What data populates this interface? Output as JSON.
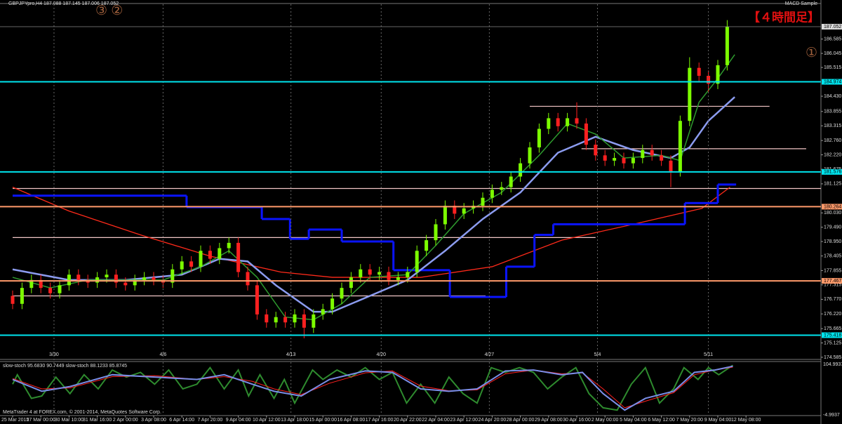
{
  "indicator": "MACD Sample",
  "footer": "MetaTrader 4 at FOREX.com, © 2001-2014, MetaQuotes Software Corp.",
  "chart_data": [
    {
      "type": "candlestick",
      "title": "GBPJPYpro,H4 187.088 187.145 187.006 187.052",
      "annotations": [
        "③ ②",
        "①",
        "【４時間足】"
      ],
      "categories": [
        "25 Mar 2015",
        null,
        null,
        "27 Mar 00:00",
        null,
        null,
        "30 Mar 10:00",
        null,
        null,
        "31 Mar 16:00",
        null,
        null,
        "2 Apr 00:00",
        null,
        null,
        "3 Apr 08:00",
        null,
        null,
        "6 Apr 14:00",
        null,
        null,
        "7 Apr 20:00",
        null,
        null,
        "9 Apr 04:00",
        null,
        null,
        "10 Apr 12:00",
        null,
        null,
        "13 Apr 18:00",
        null,
        null,
        "15 Apr 00:00",
        null,
        null,
        "16 Apr 08:00",
        null,
        null,
        "17 Apr 16:00",
        null,
        null,
        "20 Apr 22:00",
        null,
        null,
        "22 Apr 04:00",
        null,
        null,
        "23 Apr 12:00",
        null,
        null,
        "24 Apr 20:00",
        null,
        null,
        "28 Apr 00:00",
        null,
        null,
        "29 Apr 08:00",
        null,
        null,
        "30 Apr 16:00",
        null,
        null,
        "2 May 00:00",
        null,
        null,
        "5 May 04:00",
        null,
        null,
        "6 May 12:00",
        null,
        null,
        "7 May 20:00",
        null,
        null,
        "9 May 04:00",
        null,
        null,
        "12 May 08:00"
      ],
      "open": [
        176.9,
        176.6,
        177.2,
        177.5,
        177.2,
        177.0,
        177.3,
        177.7,
        177.5,
        177.4,
        177.6,
        177.7,
        177.4,
        177.3,
        177.5,
        177.6,
        177.5,
        177.4,
        177.9,
        178.2,
        178.0,
        178.6,
        178.3,
        178.7,
        178.9,
        177.8,
        177.3,
        176.2,
        175.9,
        176.1,
        175.9,
        176.2,
        175.7,
        176.2,
        176.4,
        176.8,
        177.2,
        177.6,
        177.9,
        177.7,
        177.8,
        177.5,
        177.6,
        177.8,
        178.6,
        179.0,
        179.6,
        180.3,
        180.0,
        180.2,
        180.3,
        180.6,
        180.9,
        181.0,
        181.4,
        181.9,
        182.5,
        183.2,
        183.6,
        183.3,
        183.6,
        183.4,
        182.6,
        182.2,
        182.0,
        182.1,
        181.9,
        182.1,
        182.4,
        182.2,
        182.0,
        181.6,
        183.5,
        185.5,
        185.2,
        184.9,
        185.6,
        null,
        null
      ],
      "high": [
        177.1,
        177.4,
        177.7,
        177.7,
        177.4,
        177.5,
        177.9,
        177.9,
        177.7,
        177.8,
        177.9,
        177.9,
        177.6,
        177.7,
        177.8,
        177.8,
        177.7,
        178.1,
        178.4,
        178.4,
        178.8,
        178.8,
        178.9,
        179.1,
        179.1,
        178.0,
        177.5,
        176.4,
        176.3,
        176.3,
        176.4,
        176.4,
        176.4,
        176.6,
        177.0,
        177.4,
        177.8,
        178.1,
        178.1,
        178.0,
        178.0,
        177.8,
        178.0,
        178.8,
        179.2,
        179.8,
        180.5,
        180.5,
        180.4,
        180.5,
        180.8,
        181.1,
        181.2,
        181.6,
        182.1,
        182.7,
        183.4,
        183.8,
        183.8,
        183.8,
        184.2,
        183.6,
        182.8,
        182.4,
        182.3,
        182.3,
        182.3,
        182.6,
        182.6,
        182.4,
        182.2,
        183.7,
        185.9,
        185.7,
        185.4,
        185.8,
        187.3,
        null,
        null
      ],
      "low": [
        176.4,
        176.4,
        177.0,
        177.0,
        176.8,
        176.8,
        177.1,
        177.3,
        177.2,
        177.2,
        177.4,
        177.2,
        177.1,
        177.1,
        177.3,
        177.3,
        177.2,
        177.2,
        177.7,
        177.8,
        177.8,
        178.1,
        178.1,
        178.5,
        177.6,
        177.1,
        176.0,
        175.7,
        175.7,
        175.7,
        175.7,
        175.3,
        175.5,
        176.0,
        176.2,
        176.6,
        177.0,
        177.4,
        177.5,
        177.5,
        177.3,
        177.3,
        177.4,
        177.6,
        178.4,
        178.8,
        179.4,
        179.8,
        179.8,
        180.0,
        180.1,
        180.4,
        180.7,
        180.8,
        181.2,
        181.7,
        182.3,
        183.0,
        183.1,
        183.1,
        183.2,
        182.4,
        182.0,
        181.8,
        181.8,
        181.7,
        181.7,
        181.9,
        182.0,
        181.8,
        181.0,
        181.4,
        183.3,
        185.0,
        184.6,
        184.7,
        185.4,
        null,
        null
      ],
      "close": [
        176.6,
        177.2,
        177.5,
        177.2,
        177.0,
        177.3,
        177.7,
        177.5,
        177.4,
        177.6,
        177.7,
        177.4,
        177.3,
        177.5,
        177.6,
        177.5,
        177.4,
        177.9,
        178.2,
        178.0,
        178.6,
        178.3,
        178.7,
        178.9,
        177.8,
        177.3,
        176.2,
        175.9,
        176.1,
        175.9,
        176.2,
        175.7,
        176.2,
        176.4,
        176.8,
        177.2,
        177.6,
        177.9,
        177.7,
        177.8,
        177.5,
        177.6,
        177.8,
        178.6,
        179.0,
        179.6,
        180.3,
        180.0,
        180.2,
        180.3,
        180.6,
        180.9,
        181.0,
        181.4,
        181.9,
        182.5,
        183.2,
        183.6,
        183.3,
        183.6,
        183.4,
        182.6,
        182.2,
        182.0,
        182.1,
        181.9,
        182.1,
        182.4,
        182.2,
        182.0,
        181.6,
        183.5,
        185.5,
        185.2,
        184.9,
        185.6,
        187.05,
        null,
        null
      ],
      "up_color": "#7cfc00",
      "down_color": "#ff2020",
      "ylim": [
        174.53,
        187.9
      ],
      "yticks": [
        174.585,
        175.125,
        175.665,
        {
          "value": 176.22,
          "label": "176.220"
        },
        {
          "value": 176.77,
          "label": "176.770"
        },
        177.315,
        177.855,
        178.405,
        {
          "value": 178.95,
          "label": "178.950"
        },
        {
          "value": 179.49,
          "label": "179.490"
        },
        {
          "value": 180.03,
          "label": "180.030"
        },
        181.125,
        181.675,
        {
          "value": 182.22,
          "label": "182.220"
        },
        {
          "value": 182.76,
          "label": "182.760"
        },
        183.315,
        183.855,
        {
          "value": 184.43,
          "label": "184.430"
        },
        185.515,
        186.045,
        186.585
      ],
      "current_price": 187.052,
      "levels": [
        {
          "value": 184.974,
          "color": "#00e5ee"
        },
        {
          "value": 181.576,
          "color": "#00e5ee"
        },
        {
          "value": 180.264,
          "color": "#ff9a6a"
        },
        {
          "value": 177.467,
          "color": "#ff9a6a"
        },
        {
          "value": 175.418,
          "color": "#00e5ee"
        }
      ],
      "zones": [
        {
          "value": 184.05,
          "from": 55,
          "to": 80.5,
          "color": "#f2c6c6"
        },
        {
          "value": 182.45,
          "from": 60.5,
          "to": 84.4,
          "color": "#f2c6c6"
        },
        {
          "value": 180.95,
          "from": 0,
          "to": 88.2,
          "color": "#f2c6c6"
        },
        {
          "value": 179.1,
          "from": 0,
          "to": 62,
          "color": "#f2c6c6"
        },
        {
          "value": 176.9,
          "from": 0,
          "to": 50.3,
          "color": "#f2c6c6"
        }
      ],
      "overlays": [
        {
          "color": "#ff2a1a",
          "width": 1.3,
          "step": false,
          "x": [
            0,
            6,
            13.6,
            21,
            28.5,
            34,
            43.4,
            51,
            58.4,
            66,
            73.3,
            76.3
          ],
          "values": [
            181.0,
            180.1,
            179.2,
            178.4,
            177.8,
            177.6,
            177.6,
            178.0,
            179.0,
            179.6,
            180.2,
            181.0
          ]
        },
        {
          "color": "#0a14ff",
          "width": 3,
          "step": true,
          "x": [
            0,
            18.5,
            26.5,
            29.5,
            31.5,
            35,
            40.5,
            46.5,
            52.5,
            55.5,
            57.5,
            71.5,
            75,
            76.8
          ],
          "values": [
            180.68,
            180.25,
            179.8,
            179.05,
            179.4,
            178.95,
            177.87,
            176.86,
            178.0,
            179.2,
            179.6,
            180.4,
            181.1,
            181.1
          ]
        },
        {
          "color": "#8c9cf0",
          "width": 2.5,
          "step": false,
          "x": [
            0,
            6,
            12,
            18,
            22,
            25,
            28,
            32,
            34,
            38,
            42,
            46,
            50,
            54,
            58,
            62,
            66,
            70,
            72,
            74,
            76.8
          ],
          "values": [
            177.9,
            177.5,
            177.5,
            177.7,
            178.3,
            178.2,
            177.3,
            176.3,
            176.3,
            176.9,
            177.5,
            178.6,
            179.8,
            180.8,
            182.3,
            182.9,
            182.4,
            182.1,
            182.5,
            183.5,
            184.4
          ]
        },
        {
          "color": "#2e9a2e",
          "width": 1.5,
          "step": false,
          "x": [
            0,
            4,
            8,
            12,
            16,
            20,
            23,
            26,
            29,
            32,
            35,
            38,
            42,
            45,
            48,
            52,
            56,
            59,
            62,
            65,
            69,
            71,
            73,
            75,
            76.8
          ],
          "values": [
            177.6,
            177.2,
            177.5,
            177.5,
            177.5,
            178.0,
            178.6,
            177.6,
            176.1,
            176.0,
            176.6,
            177.6,
            177.7,
            178.8,
            180.0,
            180.8,
            182.2,
            183.4,
            183.0,
            182.1,
            182.2,
            182.0,
            184.2,
            185.1,
            186.0
          ]
        }
      ],
      "separators": [
        {
          "value": 4.4,
          "label": "3/30"
        },
        {
          "value": 16,
          "label": "4/6"
        },
        {
          "value": 29.6,
          "label": "4/13"
        },
        {
          "value": 39.2,
          "label": "4/20"
        },
        {
          "value": 50.7,
          "label": "4/27"
        },
        {
          "value": 62.2,
          "label": "5/4"
        },
        {
          "value": 74,
          "label": "5/11"
        }
      ]
    },
    {
      "type": "line",
      "title": "slow-stoch 95.6830 90.7449 slow-stoch 88.1233 85.8745",
      "ylim": [
        -4.9937,
        104.9937
      ],
      "yticks": [
        104.9937,
        -4.9937
      ],
      "series": [
        {
          "color": "#2e8b2e",
          "x": [
            0,
            0.5,
            2.0,
            3.1,
            4.6,
            6.1,
            7.6,
            9.1,
            10.6,
            12.1,
            13.6,
            15.1,
            16.6,
            18.1,
            19.6,
            21.0,
            22.5,
            24.0,
            25.1,
            26.3,
            27.8,
            28.9,
            30.0,
            31.9,
            33.0,
            34.5,
            36.0,
            37.5,
            39.0,
            40.4,
            41.9,
            43.4,
            44.9,
            46.4,
            47.9,
            49.4,
            50.9,
            52.4,
            53.9,
            55.4,
            56.9,
            58.4,
            59.9,
            61.3,
            62.8,
            64.3,
            65.8,
            67.3,
            68.8,
            70.3,
            71.4,
            72.9,
            74.0,
            75.1,
            76.6
          ],
          "values": [
            60,
            80,
            30,
            35,
            75,
            40,
            80,
            50,
            90,
            75,
            85,
            60,
            90,
            50,
            60,
            95,
            50,
            90,
            35,
            80,
            30,
            70,
            20,
            90,
            70,
            90,
            75,
            95,
            70,
            85,
            20,
            60,
            20,
            75,
            40,
            20,
            95,
            85,
            95,
            85,
            50,
            75,
            95,
            40,
            10,
            5,
            60,
            95,
            20,
            50,
            95,
            70,
            95,
            80,
            100
          ]
        },
        {
          "color": "#ff2020",
          "x": [
            0,
            3.1,
            6.1,
            10.6,
            15.1,
            19.6,
            22.5,
            25.5,
            27.8,
            30.7,
            33.7,
            37.5,
            40.4,
            43.4,
            46.4,
            49.4,
            52.4,
            55.4,
            58.4,
            60.6,
            62.8,
            65.1,
            67.3,
            70.3,
            72.5,
            74.7,
            76.6
          ],
          "values": [
            72,
            50,
            52,
            76,
            78,
            70,
            76,
            66,
            50,
            38,
            62,
            84,
            88,
            56,
            46,
            48,
            82,
            90,
            82,
            84,
            50,
            10,
            24,
            42,
            80,
            90,
            96
          ]
        },
        {
          "color": "#7b8ee8",
          "x": [
            0,
            3.1,
            6.1,
            10.6,
            15.1,
            19.6,
            22.5,
            25.5,
            27.8,
            30.7,
            33.7,
            37.5,
            40.4,
            43.4,
            46.4,
            49.4,
            52.4,
            55.4,
            58.4,
            60.6,
            62.8,
            65.1,
            67.3,
            70.3,
            72.5,
            74.7,
            76.6
          ],
          "values": [
            70,
            45,
            55,
            80,
            75,
            70,
            80,
            60,
            45,
            35,
            70,
            88,
            85,
            50,
            45,
            50,
            88,
            90,
            80,
            85,
            40,
            5,
            30,
            45,
            85,
            90,
            98
          ]
        }
      ]
    }
  ]
}
